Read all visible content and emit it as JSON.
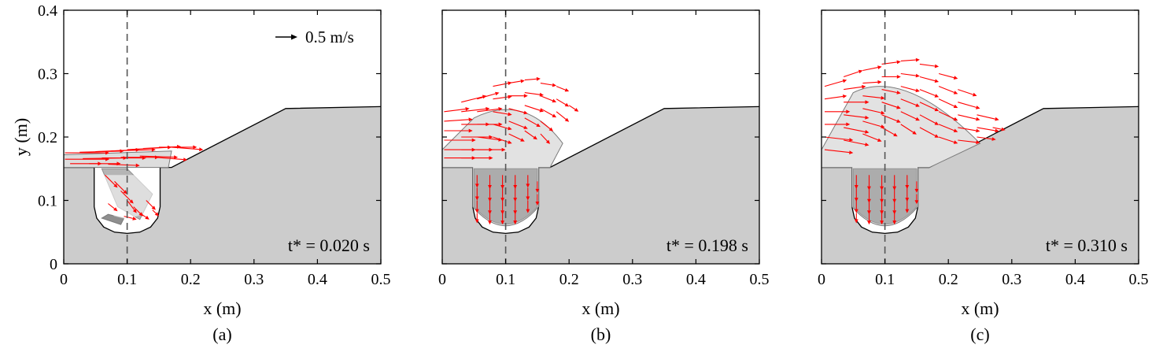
{
  "figure": {
    "ylabel": "y (m)",
    "scale_arrow_label": "0.5 m/s",
    "colors": {
      "ground": "#cccccc",
      "vectors": "#ff0000",
      "free_surface": "#7a7a7a",
      "dashed_line": "#555555",
      "frame": "#000000"
    }
  },
  "chart_data": [
    {
      "type": "scatter",
      "panel_label": "(a)",
      "time_label": "t* = 0.020 s",
      "xlabel": "x (m)",
      "xlim": [
        0,
        0.5
      ],
      "ylim": [
        0,
        0.4
      ],
      "x_ticks": [
        "0",
        "0.1",
        "0.2",
        "0.3",
        "0.4",
        "0.5"
      ],
      "y_ticks": [
        "0",
        "0.1",
        "0.2",
        "0.3",
        "0.4"
      ],
      "reference_line_x": 0.1,
      "vectors": [
        {
          "x": 0.002,
          "y": 0.175,
          "u": 0.07,
          "v": 0.0
        },
        {
          "x": 0.025,
          "y": 0.176,
          "u": 0.07,
          "v": 0.002
        },
        {
          "x": 0.05,
          "y": 0.177,
          "u": 0.07,
          "v": 0.003
        },
        {
          "x": 0.075,
          "y": 0.178,
          "u": 0.07,
          "v": 0.002
        },
        {
          "x": 0.1,
          "y": 0.18,
          "u": 0.07,
          "v": 0.004
        },
        {
          "x": 0.125,
          "y": 0.182,
          "u": 0.06,
          "v": 0.003
        },
        {
          "x": 0.15,
          "y": 0.184,
          "u": 0.06,
          "v": 0.0
        },
        {
          "x": 0.17,
          "y": 0.184,
          "u": 0.05,
          "v": -0.004
        },
        {
          "x": 0.002,
          "y": 0.165,
          "u": 0.07,
          "v": 0.0
        },
        {
          "x": 0.03,
          "y": 0.166,
          "u": 0.07,
          "v": 0.001
        },
        {
          "x": 0.06,
          "y": 0.167,
          "u": 0.07,
          "v": 0.0
        },
        {
          "x": 0.09,
          "y": 0.168,
          "u": 0.06,
          "v": 0.0
        },
        {
          "x": 0.12,
          "y": 0.17,
          "u": 0.06,
          "v": -0.002
        },
        {
          "x": 0.145,
          "y": 0.168,
          "u": 0.05,
          "v": -0.004
        },
        {
          "x": 0.01,
          "y": 0.158,
          "u": 0.05,
          "v": 0.0
        },
        {
          "x": 0.04,
          "y": 0.158,
          "u": 0.05,
          "v": 0.0
        },
        {
          "x": 0.07,
          "y": 0.157,
          "u": 0.05,
          "v": -0.002
        },
        {
          "x": 0.065,
          "y": 0.14,
          "u": 0.02,
          "v": -0.02
        },
        {
          "x": 0.08,
          "y": 0.13,
          "u": 0.02,
          "v": -0.02
        },
        {
          "x": 0.09,
          "y": 0.115,
          "u": 0.02,
          "v": -0.02
        },
        {
          "x": 0.1,
          "y": 0.1,
          "u": 0.015,
          "v": -0.02
        },
        {
          "x": 0.11,
          "y": 0.09,
          "u": 0.015,
          "v": -0.015
        },
        {
          "x": 0.12,
          "y": 0.08,
          "u": 0.015,
          "v": -0.01
        },
        {
          "x": 0.13,
          "y": 0.1,
          "u": 0.015,
          "v": -0.015
        },
        {
          "x": 0.14,
          "y": 0.085,
          "u": 0.01,
          "v": -0.01
        },
        {
          "x": 0.095,
          "y": 0.075,
          "u": 0.02,
          "v": -0.005
        },
        {
          "x": 0.07,
          "y": 0.095,
          "u": 0.015,
          "v": -0.012
        }
      ]
    },
    {
      "type": "scatter",
      "panel_label": "(b)",
      "time_label": "t* = 0.198 s",
      "xlabel": "x (m)",
      "xlim": [
        0,
        0.5
      ],
      "ylim": [
        0,
        0.4
      ],
      "x_ticks": [
        "0",
        "0.1",
        "0.2",
        "0.3",
        "0.4",
        "0.5"
      ],
      "y_ticks": [
        "0",
        "0.1",
        "0.2",
        "0.3",
        "0.4"
      ],
      "reference_line_x": 0.1,
      "vectors": [
        {
          "x": 0.003,
          "y": 0.24,
          "u": 0.04,
          "v": 0.005
        },
        {
          "x": 0.003,
          "y": 0.225,
          "u": 0.045,
          "v": 0.003
        },
        {
          "x": 0.003,
          "y": 0.21,
          "u": 0.045,
          "v": 0.0
        },
        {
          "x": 0.003,
          "y": 0.195,
          "u": 0.05,
          "v": 0.0
        },
        {
          "x": 0.003,
          "y": 0.18,
          "u": 0.05,
          "v": 0.0
        },
        {
          "x": 0.003,
          "y": 0.167,
          "u": 0.05,
          "v": 0.0
        },
        {
          "x": 0.03,
          "y": 0.255,
          "u": 0.04,
          "v": 0.01
        },
        {
          "x": 0.03,
          "y": 0.24,
          "u": 0.045,
          "v": 0.005
        },
        {
          "x": 0.03,
          "y": 0.22,
          "u": 0.045,
          "v": 0.0
        },
        {
          "x": 0.03,
          "y": 0.2,
          "u": 0.05,
          "v": 0.0
        },
        {
          "x": 0.03,
          "y": 0.18,
          "u": 0.05,
          "v": 0.0
        },
        {
          "x": 0.03,
          "y": 0.167,
          "u": 0.05,
          "v": 0.0
        },
        {
          "x": 0.055,
          "y": 0.26,
          "u": 0.035,
          "v": 0.01
        },
        {
          "x": 0.055,
          "y": 0.24,
          "u": 0.04,
          "v": 0.005
        },
        {
          "x": 0.055,
          "y": 0.22,
          "u": 0.04,
          "v": 0.0
        },
        {
          "x": 0.055,
          "y": 0.2,
          "u": 0.04,
          "v": -0.005
        },
        {
          "x": 0.055,
          "y": 0.18,
          "u": 0.045,
          "v": 0.0
        },
        {
          "x": 0.08,
          "y": 0.28,
          "u": 0.03,
          "v": 0.006
        },
        {
          "x": 0.08,
          "y": 0.26,
          "u": 0.03,
          "v": 0.004
        },
        {
          "x": 0.08,
          "y": 0.24,
          "u": 0.03,
          "v": -0.005
        },
        {
          "x": 0.08,
          "y": 0.22,
          "u": 0.03,
          "v": -0.008
        },
        {
          "x": 0.08,
          "y": 0.2,
          "u": 0.03,
          "v": -0.01
        },
        {
          "x": 0.105,
          "y": 0.285,
          "u": 0.025,
          "v": 0.004
        },
        {
          "x": 0.105,
          "y": 0.265,
          "u": 0.03,
          "v": 0.0
        },
        {
          "x": 0.105,
          "y": 0.245,
          "u": 0.03,
          "v": -0.008
        },
        {
          "x": 0.105,
          "y": 0.225,
          "u": 0.03,
          "v": -0.012
        },
        {
          "x": 0.105,
          "y": 0.205,
          "u": 0.025,
          "v": -0.012
        },
        {
          "x": 0.13,
          "y": 0.29,
          "u": 0.025,
          "v": 0.002
        },
        {
          "x": 0.13,
          "y": 0.27,
          "u": 0.03,
          "v": -0.004
        },
        {
          "x": 0.13,
          "y": 0.25,
          "u": 0.03,
          "v": -0.01
        },
        {
          "x": 0.13,
          "y": 0.23,
          "u": 0.025,
          "v": -0.014
        },
        {
          "x": 0.13,
          "y": 0.21,
          "u": 0.02,
          "v": -0.014
        },
        {
          "x": 0.155,
          "y": 0.285,
          "u": 0.025,
          "v": -0.004
        },
        {
          "x": 0.155,
          "y": 0.265,
          "u": 0.025,
          "v": -0.01
        },
        {
          "x": 0.155,
          "y": 0.245,
          "u": 0.025,
          "v": -0.014
        },
        {
          "x": 0.155,
          "y": 0.225,
          "u": 0.02,
          "v": -0.016
        },
        {
          "x": 0.155,
          "y": 0.205,
          "u": 0.015,
          "v": -0.016
        },
        {
          "x": 0.18,
          "y": 0.28,
          "u": 0.02,
          "v": -0.008
        },
        {
          "x": 0.18,
          "y": 0.26,
          "u": 0.02,
          "v": -0.012
        },
        {
          "x": 0.18,
          "y": 0.24,
          "u": 0.02,
          "v": -0.016
        },
        {
          "x": 0.2,
          "y": 0.25,
          "u": 0.015,
          "v": -0.01
        },
        {
          "x": 0.055,
          "y": 0.14,
          "u": 0.0,
          "v": -0.02
        },
        {
          "x": 0.055,
          "y": 0.12,
          "u": 0.0,
          "v": -0.02
        },
        {
          "x": 0.055,
          "y": 0.1,
          "u": 0.0,
          "v": -0.02
        },
        {
          "x": 0.055,
          "y": 0.08,
          "u": 0.0,
          "v": -0.016
        },
        {
          "x": 0.075,
          "y": 0.14,
          "u": 0.0,
          "v": -0.022
        },
        {
          "x": 0.075,
          "y": 0.12,
          "u": 0.0,
          "v": -0.022
        },
        {
          "x": 0.075,
          "y": 0.1,
          "u": 0.0,
          "v": -0.022
        },
        {
          "x": 0.075,
          "y": 0.08,
          "u": 0.0,
          "v": -0.018
        },
        {
          "x": 0.095,
          "y": 0.14,
          "u": 0.0,
          "v": -0.022
        },
        {
          "x": 0.095,
          "y": 0.12,
          "u": 0.0,
          "v": -0.022
        },
        {
          "x": 0.095,
          "y": 0.1,
          "u": 0.0,
          "v": -0.022
        },
        {
          "x": 0.095,
          "y": 0.08,
          "u": 0.0,
          "v": -0.018
        },
        {
          "x": 0.115,
          "y": 0.14,
          "u": 0.0,
          "v": -0.022
        },
        {
          "x": 0.115,
          "y": 0.12,
          "u": 0.0,
          "v": -0.022
        },
        {
          "x": 0.115,
          "y": 0.1,
          "u": 0.0,
          "v": -0.022
        },
        {
          "x": 0.115,
          "y": 0.08,
          "u": 0.0,
          "v": -0.018
        },
        {
          "x": 0.135,
          "y": 0.14,
          "u": 0.0,
          "v": -0.02
        },
        {
          "x": 0.135,
          "y": 0.12,
          "u": 0.0,
          "v": -0.02
        },
        {
          "x": 0.135,
          "y": 0.1,
          "u": 0.0,
          "v": -0.02
        },
        {
          "x": 0.15,
          "y": 0.13,
          "u": 0.0,
          "v": -0.018
        },
        {
          "x": 0.15,
          "y": 0.11,
          "u": 0.0,
          "v": -0.018
        }
      ]
    },
    {
      "type": "scatter",
      "panel_label": "(c)",
      "time_label": "t* = 0.310 s",
      "xlabel": "x (m)",
      "xlim": [
        0,
        0.5
      ],
      "ylim": [
        0,
        0.4
      ],
      "x_ticks": [
        "0",
        "0.1",
        "0.2",
        "0.3",
        "0.4",
        "0.5"
      ],
      "y_ticks": [
        "0",
        "0.1",
        "0.2",
        "0.3",
        "0.4"
      ],
      "reference_line_x": 0.1,
      "vectors": [
        {
          "x": 0.005,
          "y": 0.28,
          "u": 0.035,
          "v": 0.01
        },
        {
          "x": 0.005,
          "y": 0.26,
          "u": 0.035,
          "v": 0.005
        },
        {
          "x": 0.005,
          "y": 0.24,
          "u": 0.04,
          "v": 0.0
        },
        {
          "x": 0.005,
          "y": 0.22,
          "u": 0.04,
          "v": 0.0
        },
        {
          "x": 0.005,
          "y": 0.2,
          "u": 0.045,
          "v": -0.005
        },
        {
          "x": 0.005,
          "y": 0.18,
          "u": 0.045,
          "v": -0.005
        },
        {
          "x": 0.035,
          "y": 0.295,
          "u": 0.03,
          "v": 0.01
        },
        {
          "x": 0.035,
          "y": 0.275,
          "u": 0.035,
          "v": 0.005
        },
        {
          "x": 0.035,
          "y": 0.255,
          "u": 0.04,
          "v": 0.0
        },
        {
          "x": 0.035,
          "y": 0.235,
          "u": 0.04,
          "v": -0.005
        },
        {
          "x": 0.035,
          "y": 0.215,
          "u": 0.04,
          "v": -0.008
        },
        {
          "x": 0.035,
          "y": 0.195,
          "u": 0.04,
          "v": -0.008
        },
        {
          "x": 0.065,
          "y": 0.305,
          "u": 0.03,
          "v": 0.006
        },
        {
          "x": 0.065,
          "y": 0.285,
          "u": 0.03,
          "v": 0.002
        },
        {
          "x": 0.065,
          "y": 0.265,
          "u": 0.035,
          "v": -0.004
        },
        {
          "x": 0.065,
          "y": 0.245,
          "u": 0.035,
          "v": -0.008
        },
        {
          "x": 0.065,
          "y": 0.225,
          "u": 0.035,
          "v": -0.01
        },
        {
          "x": 0.065,
          "y": 0.205,
          "u": 0.03,
          "v": -0.012
        },
        {
          "x": 0.095,
          "y": 0.315,
          "u": 0.03,
          "v": 0.004
        },
        {
          "x": 0.095,
          "y": 0.295,
          "u": 0.03,
          "v": 0.0
        },
        {
          "x": 0.095,
          "y": 0.275,
          "u": 0.03,
          "v": -0.006
        },
        {
          "x": 0.095,
          "y": 0.255,
          "u": 0.03,
          "v": -0.01
        },
        {
          "x": 0.095,
          "y": 0.235,
          "u": 0.03,
          "v": -0.012
        },
        {
          "x": 0.095,
          "y": 0.215,
          "u": 0.025,
          "v": -0.014
        },
        {
          "x": 0.125,
          "y": 0.32,
          "u": 0.03,
          "v": 0.002
        },
        {
          "x": 0.125,
          "y": 0.3,
          "u": 0.03,
          "v": -0.004
        },
        {
          "x": 0.125,
          "y": 0.28,
          "u": 0.03,
          "v": -0.008
        },
        {
          "x": 0.125,
          "y": 0.26,
          "u": 0.03,
          "v": -0.012
        },
        {
          "x": 0.125,
          "y": 0.24,
          "u": 0.03,
          "v": -0.014
        },
        {
          "x": 0.125,
          "y": 0.22,
          "u": 0.025,
          "v": -0.016
        },
        {
          "x": 0.155,
          "y": 0.315,
          "u": 0.03,
          "v": -0.004
        },
        {
          "x": 0.155,
          "y": 0.295,
          "u": 0.03,
          "v": -0.008
        },
        {
          "x": 0.155,
          "y": 0.275,
          "u": 0.03,
          "v": -0.012
        },
        {
          "x": 0.155,
          "y": 0.255,
          "u": 0.03,
          "v": -0.014
        },
        {
          "x": 0.155,
          "y": 0.235,
          "u": 0.03,
          "v": -0.016
        },
        {
          "x": 0.155,
          "y": 0.215,
          "u": 0.03,
          "v": -0.016
        },
        {
          "x": 0.185,
          "y": 0.3,
          "u": 0.03,
          "v": -0.008
        },
        {
          "x": 0.185,
          "y": 0.28,
          "u": 0.03,
          "v": -0.012
        },
        {
          "x": 0.185,
          "y": 0.26,
          "u": 0.03,
          "v": -0.014
        },
        {
          "x": 0.185,
          "y": 0.24,
          "u": 0.03,
          "v": -0.014
        },
        {
          "x": 0.185,
          "y": 0.22,
          "u": 0.03,
          "v": -0.012
        },
        {
          "x": 0.185,
          "y": 0.2,
          "u": 0.03,
          "v": -0.01
        },
        {
          "x": 0.215,
          "y": 0.275,
          "u": 0.03,
          "v": -0.01
        },
        {
          "x": 0.215,
          "y": 0.255,
          "u": 0.035,
          "v": -0.01
        },
        {
          "x": 0.215,
          "y": 0.235,
          "u": 0.035,
          "v": -0.008
        },
        {
          "x": 0.215,
          "y": 0.215,
          "u": 0.035,
          "v": -0.006
        },
        {
          "x": 0.215,
          "y": 0.195,
          "u": 0.035,
          "v": -0.004
        },
        {
          "x": 0.245,
          "y": 0.235,
          "u": 0.035,
          "v": -0.008
        },
        {
          "x": 0.245,
          "y": 0.215,
          "u": 0.035,
          "v": -0.006
        },
        {
          "x": 0.245,
          "y": 0.2,
          "u": 0.03,
          "v": -0.004
        },
        {
          "x": 0.27,
          "y": 0.215,
          "u": 0.02,
          "v": -0.004
        },
        {
          "x": 0.055,
          "y": 0.14,
          "u": 0.0,
          "v": -0.022
        },
        {
          "x": 0.055,
          "y": 0.12,
          "u": 0.0,
          "v": -0.022
        },
        {
          "x": 0.055,
          "y": 0.1,
          "u": 0.0,
          "v": -0.02
        },
        {
          "x": 0.055,
          "y": 0.08,
          "u": 0.0,
          "v": -0.016
        },
        {
          "x": 0.075,
          "y": 0.14,
          "u": 0.0,
          "v": -0.024
        },
        {
          "x": 0.075,
          "y": 0.12,
          "u": 0.0,
          "v": -0.024
        },
        {
          "x": 0.075,
          "y": 0.1,
          "u": 0.0,
          "v": -0.022
        },
        {
          "x": 0.075,
          "y": 0.08,
          "u": 0.0,
          "v": -0.018
        },
        {
          "x": 0.095,
          "y": 0.14,
          "u": 0.0,
          "v": -0.024
        },
        {
          "x": 0.095,
          "y": 0.12,
          "u": 0.0,
          "v": -0.024
        },
        {
          "x": 0.095,
          "y": 0.1,
          "u": 0.0,
          "v": -0.022
        },
        {
          "x": 0.095,
          "y": 0.08,
          "u": 0.0,
          "v": -0.018
        },
        {
          "x": 0.115,
          "y": 0.14,
          "u": 0.0,
          "v": -0.024
        },
        {
          "x": 0.115,
          "y": 0.12,
          "u": 0.0,
          "v": -0.024
        },
        {
          "x": 0.115,
          "y": 0.1,
          "u": 0.0,
          "v": -0.022
        },
        {
          "x": 0.115,
          "y": 0.08,
          "u": 0.0,
          "v": -0.018
        },
        {
          "x": 0.135,
          "y": 0.14,
          "u": 0.0,
          "v": -0.022
        },
        {
          "x": 0.135,
          "y": 0.12,
          "u": 0.0,
          "v": -0.022
        },
        {
          "x": 0.135,
          "y": 0.1,
          "u": 0.0,
          "v": -0.02
        },
        {
          "x": 0.15,
          "y": 0.13,
          "u": 0.0,
          "v": -0.018
        },
        {
          "x": 0.15,
          "y": 0.11,
          "u": 0.0,
          "v": -0.016
        }
      ]
    }
  ]
}
